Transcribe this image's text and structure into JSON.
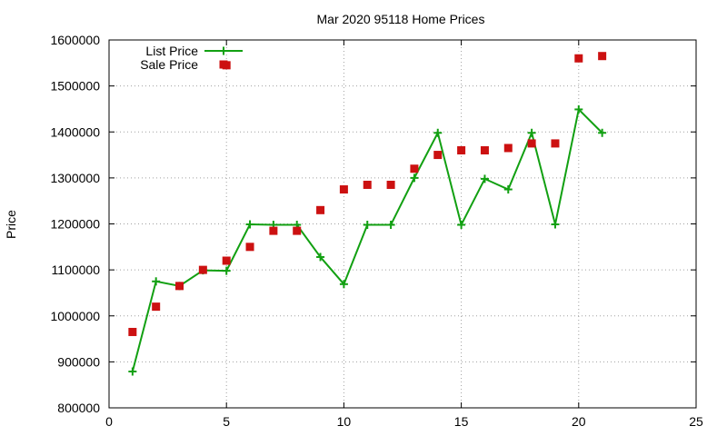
{
  "chart_data": {
    "type": "scatter",
    "title": "Mar 2020 95118 Home Prices",
    "xlabel": "",
    "ylabel": "Price",
    "xlim": [
      0,
      25
    ],
    "ylim": [
      800000,
      1600000
    ],
    "x_ticks": [
      "0",
      "5",
      "10",
      "15",
      "20",
      "25"
    ],
    "y_ticks": [
      "800000",
      "900000",
      "1000000",
      "1100000",
      "1200000",
      "1300000",
      "1400000",
      "1500000",
      "1600000"
    ],
    "grid": true,
    "legend_position": "top-left",
    "series": [
      {
        "name": "List Price",
        "style": "linespoints",
        "marker": "plus",
        "color": "#12a012",
        "x": [
          1,
          2,
          3,
          4,
          5,
          6,
          7,
          8,
          9,
          10,
          11,
          12,
          13,
          14,
          15,
          16,
          17,
          18,
          19,
          20,
          21
        ],
        "y": [
          879000,
          1075000,
          1065000,
          1099000,
          1098000,
          1199000,
          1198000,
          1198000,
          1128000,
          1069000,
          1198000,
          1198000,
          1300000,
          1398000,
          1198000,
          1298000,
          1275000,
          1398000,
          1199000,
          1449000,
          1398000
        ]
      },
      {
        "name": "Sale Price",
        "style": "points",
        "marker": "square",
        "color": "#cc1111",
        "x": [
          1,
          2,
          3,
          4,
          5,
          5,
          6,
          7,
          8,
          9,
          10,
          11,
          12,
          13,
          14,
          15,
          16,
          17,
          18,
          19,
          20,
          21
        ],
        "y": [
          965000,
          1020000,
          1065000,
          1100000,
          1120000,
          1545000,
          1150000,
          1185000,
          1185000,
          1230000,
          1275000,
          1285000,
          1285000,
          1320000,
          1350000,
          1360000,
          1360000,
          1365000,
          1375000,
          1375000,
          1560000,
          1565000
        ]
      }
    ]
  }
}
